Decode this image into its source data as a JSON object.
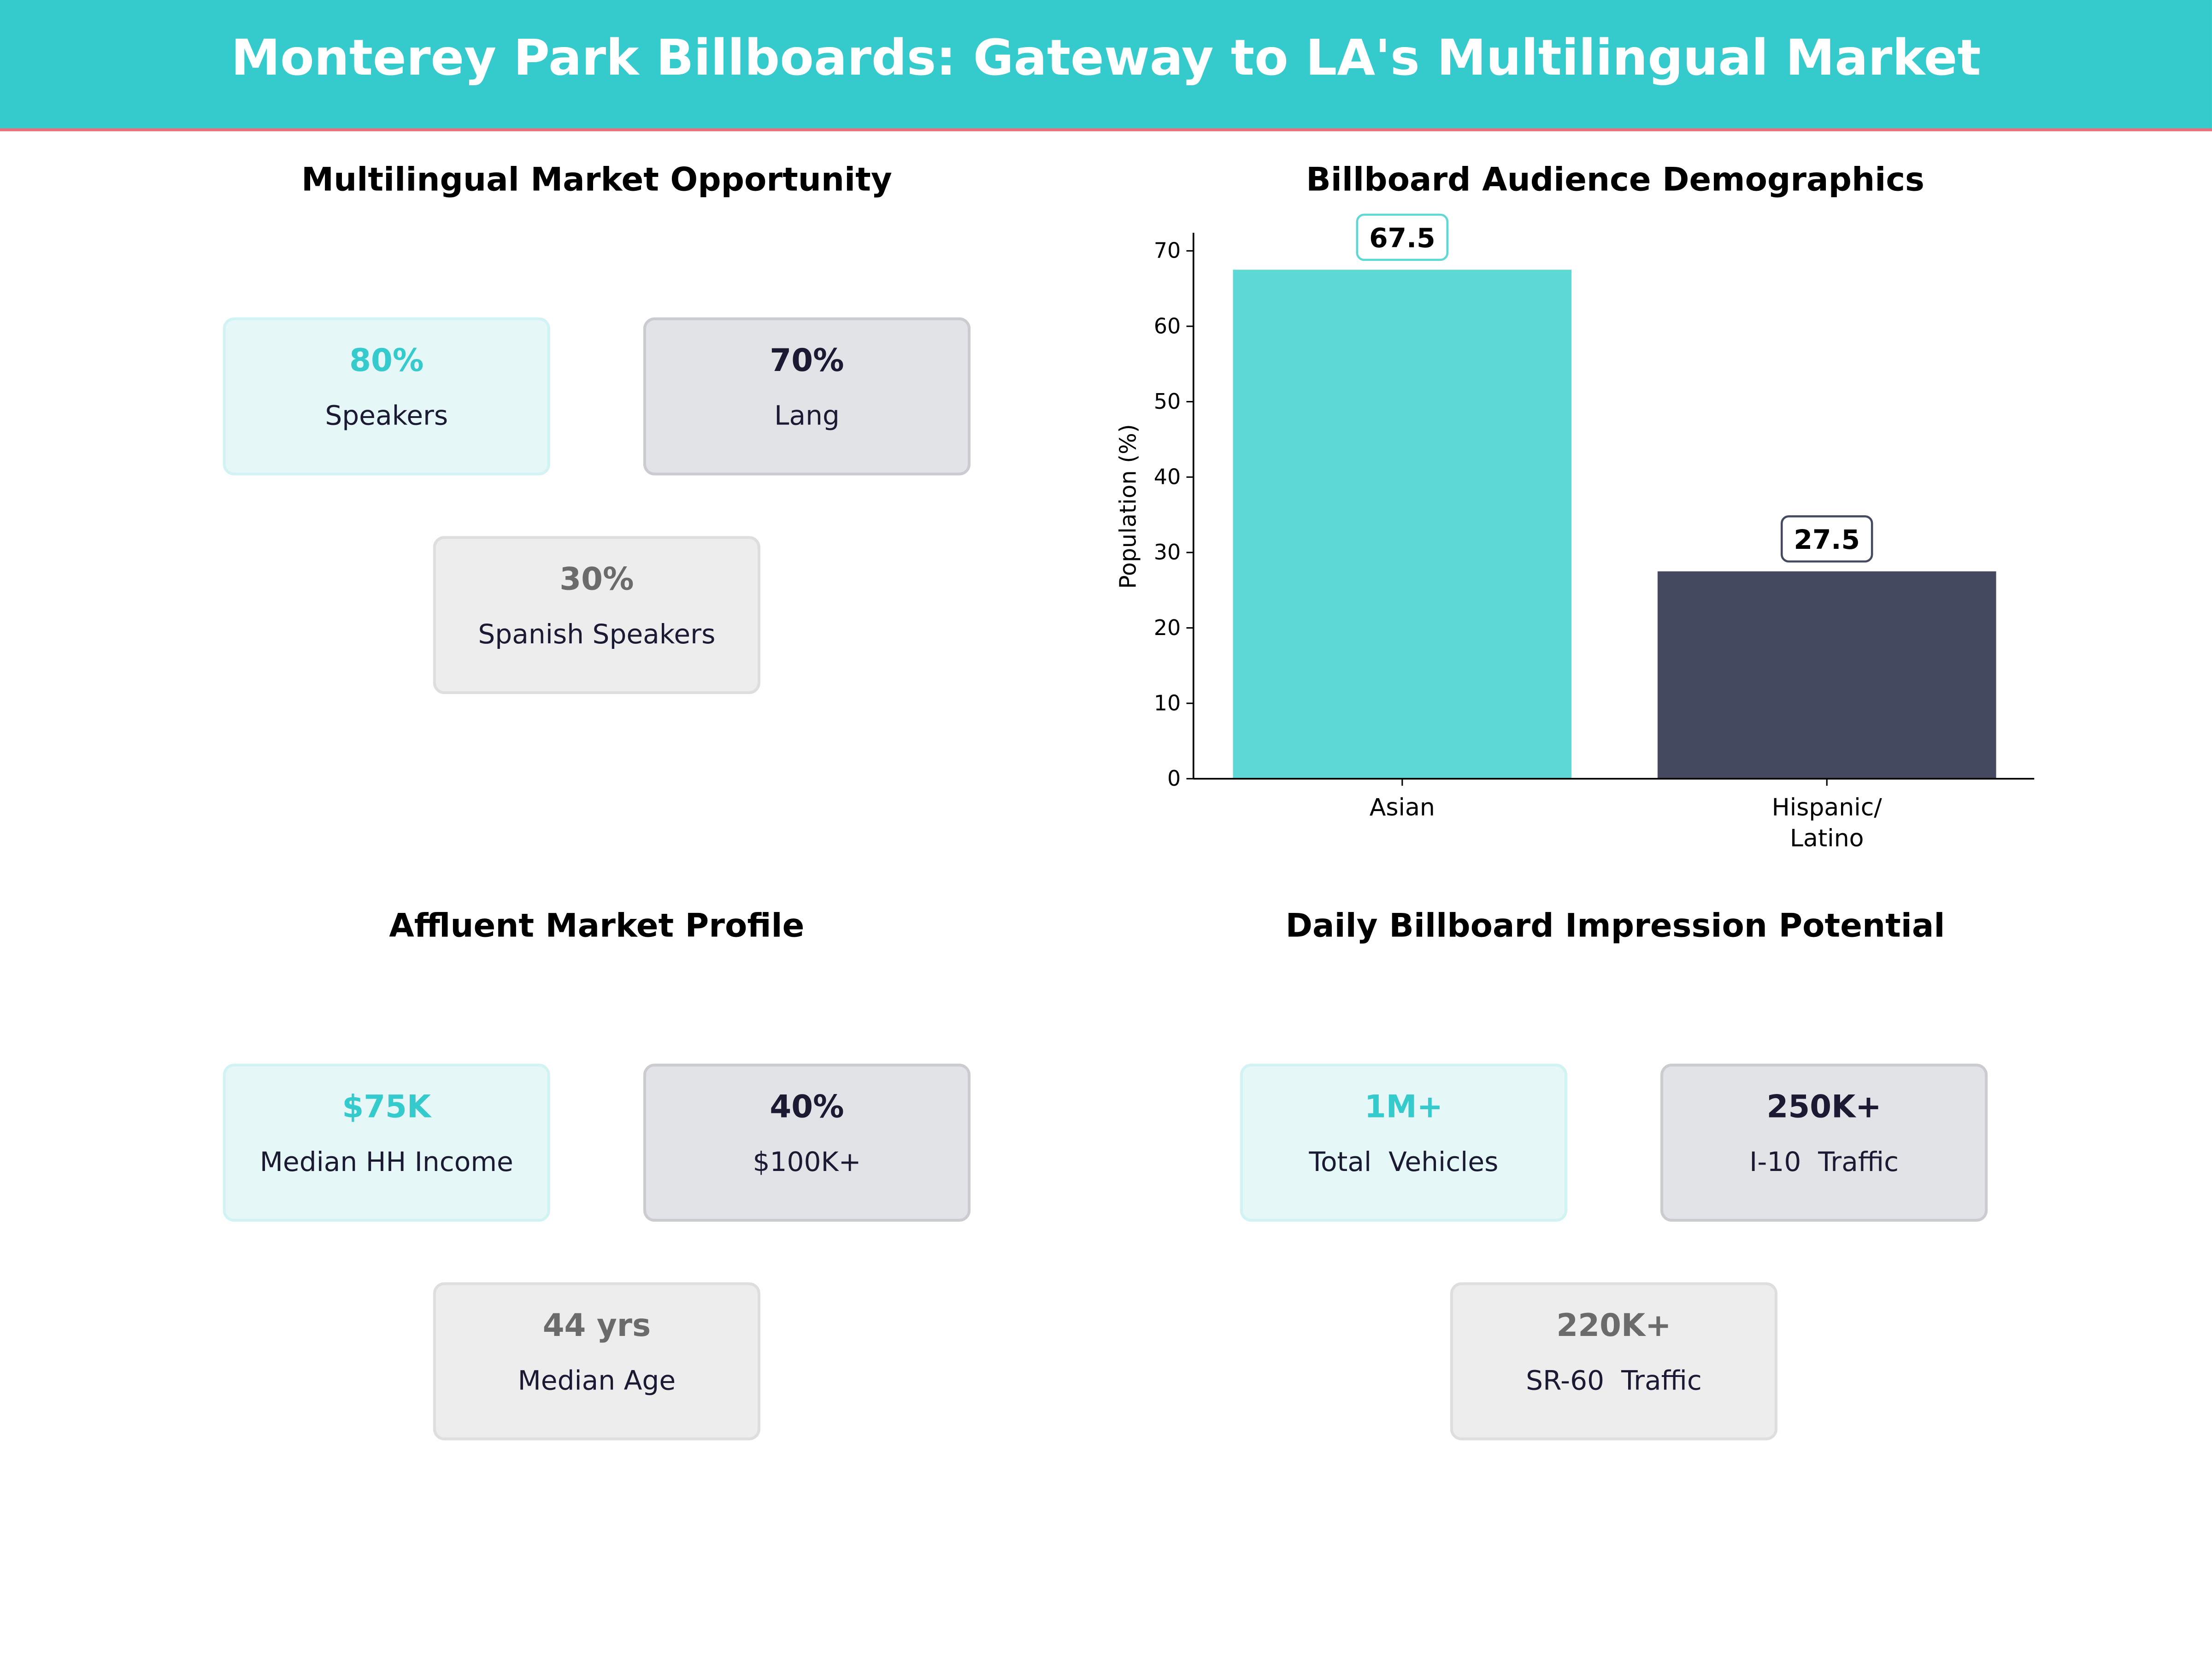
{
  "header": {
    "title": "Monterey Park Billboards: Gateway to LA's Multilingual Market"
  },
  "colors": {
    "header": "#35cbcc",
    "accent_line": "#f06b7a",
    "teal": "#35cbcc",
    "navy": "#1a1a33",
    "grey": "#6b6b6b",
    "bar_asian": "#5dd8d5",
    "bar_hispanic": "#464a60"
  },
  "panels": [
    {
      "title": "Multilingual Market Opportunity",
      "cards": [
        {
          "value": "80%",
          "label": "Speakers"
        },
        {
          "value": "70%",
          "label": "Lang"
        },
        {
          "value": "30%",
          "label": "Spanish Speakers"
        }
      ]
    },
    {
      "title": "Affluent Market Profile",
      "cards": [
        {
          "value": "$75K",
          "label": "Median HH Income"
        },
        {
          "value": "40%",
          "label": "$100K+"
        },
        {
          "value": "44 yrs",
          "label": "Median Age"
        }
      ]
    },
    {
      "title": "Daily Billboard Impression Potential",
      "cards": [
        {
          "value": "1M+",
          "label": "Total  Vehicles"
        },
        {
          "value": "250K+",
          "label": "I-10  Traffic"
        },
        {
          "value": "220K+",
          "label": "SR-60  Traffic"
        }
      ]
    }
  ],
  "chart_data": {
    "type": "bar",
    "title": "Billboard Audience Demographics",
    "categories": [
      "Asian",
      "Hispanic/\nLatino"
    ],
    "values": [
      67.5,
      27.5
    ],
    "data_labels": [
      "67.5",
      "27.5"
    ],
    "ylabel": "Population (%)",
    "xlabel": "",
    "ylim": [
      0,
      72.4
    ],
    "yticks": [
      0,
      10,
      20,
      30,
      40,
      50,
      60,
      70
    ],
    "grid": false
  }
}
